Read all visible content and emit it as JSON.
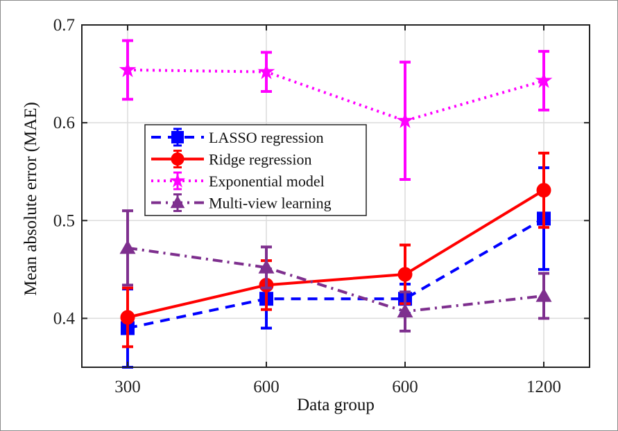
{
  "chart_data": {
    "type": "line",
    "xlabel": "Data group",
    "ylabel": "Mean absolute error (MAE)",
    "categories": [
      "300",
      "600",
      "600",
      "1200"
    ],
    "ylim": [
      0.35,
      0.7
    ],
    "yticks": [
      "0.4",
      "0.5",
      "0.6",
      "0.7"
    ],
    "grid": true,
    "legend_position": "upper-left",
    "series": [
      {
        "name": "LASSO regression",
        "color": "#0000ff",
        "line_style": "dashed",
        "marker": "square",
        "values": [
          0.39,
          0.42,
          0.42,
          0.502
        ],
        "errors": [
          0.04,
          0.03,
          0.015,
          0.052
        ]
      },
      {
        "name": "Ridge regression",
        "color": "#ff0000",
        "line_style": "solid",
        "marker": "circle",
        "values": [
          0.401,
          0.434,
          0.445,
          0.531
        ],
        "errors": [
          0.03,
          0.025,
          0.03,
          0.038
        ]
      },
      {
        "name": "Exponential model",
        "color": "#ff00ff",
        "line_style": "dotted",
        "marker": "star",
        "values": [
          0.654,
          0.652,
          0.602,
          0.643
        ],
        "errors": [
          0.03,
          0.02,
          0.06,
          0.03
        ]
      },
      {
        "name": "Multi-view learning",
        "color": "#7e2f8e",
        "line_style": "dashdot",
        "marker": "triangle",
        "values": [
          0.472,
          0.452,
          0.407,
          0.423
        ],
        "errors": [
          0.038,
          0.021,
          0.02,
          0.023
        ]
      }
    ]
  }
}
